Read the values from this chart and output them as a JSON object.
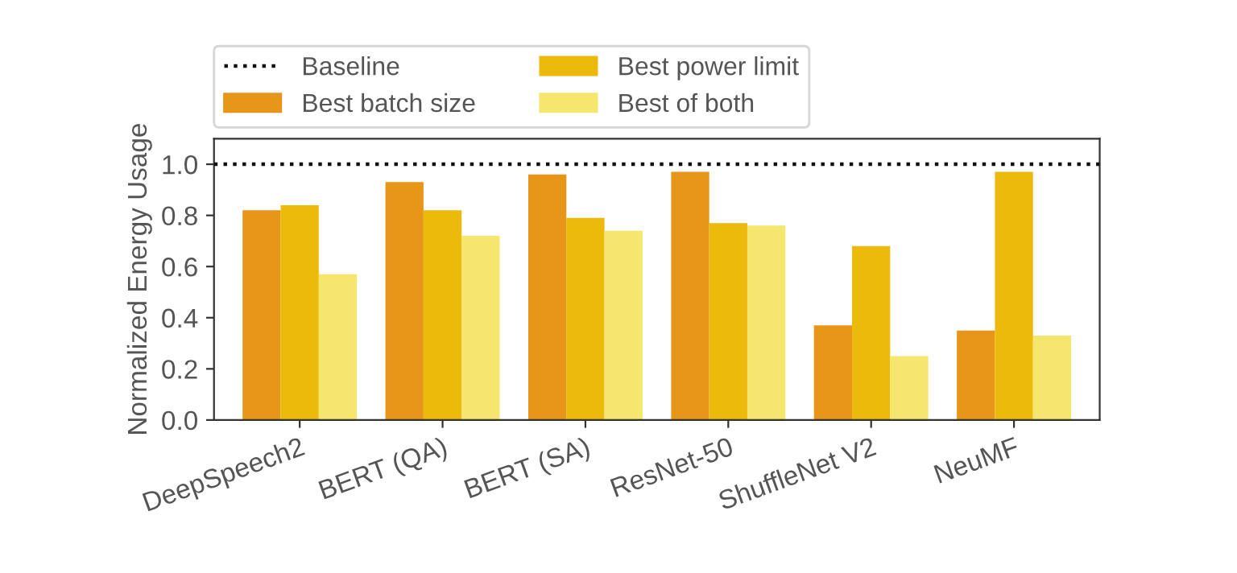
{
  "chart_data": {
    "type": "bar",
    "ylabel": "Normalized Energy Usage",
    "categories": [
      "DeepSpeech2",
      "BERT (QA)",
      "BERT (SA)",
      "ResNet-50",
      "ShuffleNet V2",
      "NeuMF"
    ],
    "series": [
      {
        "name": "Best batch size",
        "color": "#e8961a",
        "values": [
          0.82,
          0.93,
          0.96,
          0.97,
          0.37,
          0.35
        ]
      },
      {
        "name": "Best power limit",
        "color": "#ebba0a",
        "values": [
          0.84,
          0.82,
          0.79,
          0.77,
          0.68,
          0.97
        ]
      },
      {
        "name": "Best of both",
        "color": "#f5e66e",
        "values": [
          0.57,
          0.72,
          0.74,
          0.76,
          0.25,
          0.33
        ]
      }
    ],
    "ref_lines": [
      {
        "axis": "y",
        "value": 1.0,
        "label": "Baseline",
        "color": "#111111",
        "line_style": "dotted"
      }
    ],
    "ylim": [
      0,
      1.1
    ],
    "yticks": [
      {
        "value": 0,
        "label": "0.0"
      },
      {
        "value": 0.2,
        "label": "0.2"
      },
      {
        "value": 0.4,
        "label": "0.4"
      },
      {
        "value": 0.6,
        "label": "0.6"
      },
      {
        "value": 0.8,
        "label": "0.8"
      },
      {
        "value": 1.0,
        "label": "1.0"
      }
    ],
    "grid": false,
    "legend": "top"
  }
}
